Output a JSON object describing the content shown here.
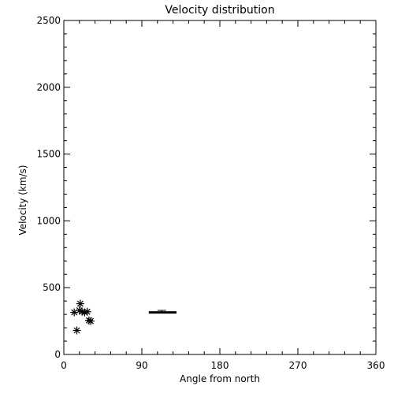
{
  "chart_data": {
    "type": "scatter",
    "title": "Velocity distribution",
    "xlabel": "Angle from north",
    "ylabel": "Velocity (km/s)",
    "xlim": [
      0,
      360
    ],
    "ylim": [
      0,
      2500
    ],
    "x_ticks": [
      0,
      90,
      180,
      270,
      360
    ],
    "y_ticks": [
      0,
      500,
      1000,
      1500,
      2000,
      2500
    ],
    "grid": false,
    "marker": "asterisk",
    "series": [
      {
        "points": [
          {
            "x": 12,
            "y": 315
          },
          {
            "x": 15,
            "y": 180
          },
          {
            "x": 18,
            "y": 330
          },
          {
            "x": 19,
            "y": 380
          },
          {
            "x": 21,
            "y": 320
          },
          {
            "x": 24,
            "y": 315
          },
          {
            "x": 27,
            "y": 320
          },
          {
            "x": 29,
            "y": 255
          },
          {
            "x": 31,
            "y": 250
          }
        ]
      }
    ],
    "summary_marker": {
      "x_range": [
        98,
        130
      ],
      "y": 315,
      "error_upper": 330,
      "error_x_range": [
        108,
        118
      ]
    }
  }
}
